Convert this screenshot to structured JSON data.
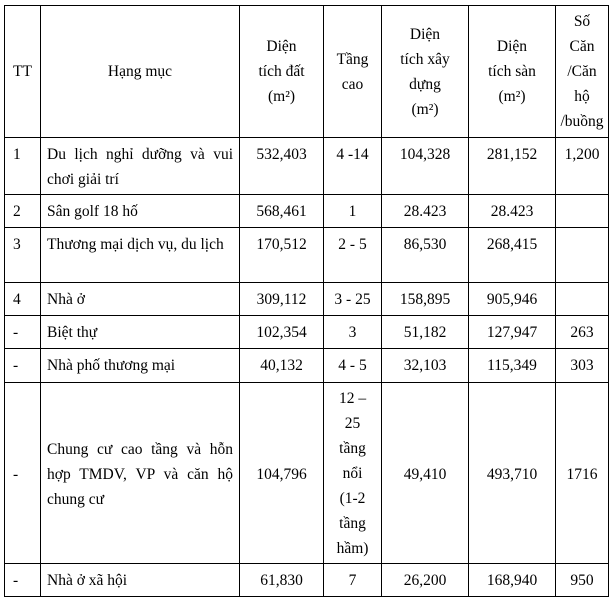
{
  "headers": {
    "tt": "TT",
    "hang_muc": "Hạng mục",
    "dien_tich_dat": [
      "Diện",
      "tích đất",
      "(m²)"
    ],
    "tang_cao": [
      "Tầng",
      "cao"
    ],
    "dien_tich_xay_dung": [
      "Diện",
      "tích xây",
      "dựng",
      "(m²)"
    ],
    "dien_tich_san": [
      "Diện",
      "tích sàn",
      "(m²)"
    ],
    "so_can": [
      "Số",
      "Căn",
      "/Căn",
      "hộ",
      "/buồng"
    ]
  },
  "rows": [
    {
      "tt": "1",
      "hang_muc": "Du lịch nghỉ dưỡng và vui chơi giải trí",
      "dat": "532,403",
      "tang": "4 -14",
      "xay_dung": "104,328",
      "san": "281,152",
      "can": "1,200"
    },
    {
      "tt": "2",
      "hang_muc": "Sân golf 18 hố",
      "dat": "568,461",
      "tang": "1",
      "xay_dung": "28.423",
      "san": "28.423",
      "can": ""
    },
    {
      "tt": "3",
      "hang_muc": "Thương mại dịch vụ, du lịch",
      "dat": "170,512",
      "tang": "2 - 5",
      "xay_dung": "86,530",
      "san": "268,415",
      "can": ""
    },
    {
      "tt": "4",
      "hang_muc": "Nhà ở",
      "dat": "309,112",
      "tang": "3 - 25",
      "xay_dung": "158,895",
      "san": "905,946",
      "can": ""
    },
    {
      "tt": "-",
      "hang_muc": "Biệt thự",
      "dat": "102,354",
      "tang": "3",
      "xay_dung": "51,182",
      "san": "127,947",
      "can": "263"
    },
    {
      "tt": "-",
      "hang_muc": "Nhà phố thương mại",
      "dat": "40,132",
      "tang": "4 - 5",
      "xay_dung": "32,103",
      "san": "115,349",
      "can": "303"
    },
    {
      "tt": "-",
      "hang_muc": "Chung cư cao tầng và hỗn hợp TMDV, VP và  căn hộ chung cư",
      "dat": "104,796",
      "tang": "12 – 25 tầng nổi (1-2 tầng hầm)",
      "xay_dung": "49,410",
      "san": "493,710",
      "can": "1716"
    },
    {
      "tt": "-",
      "hang_muc": "Nhà ở xã hội",
      "dat": "61,830",
      "tang": "7",
      "xay_dung": "26,200",
      "san": "168,940",
      "can": "950"
    }
  ]
}
